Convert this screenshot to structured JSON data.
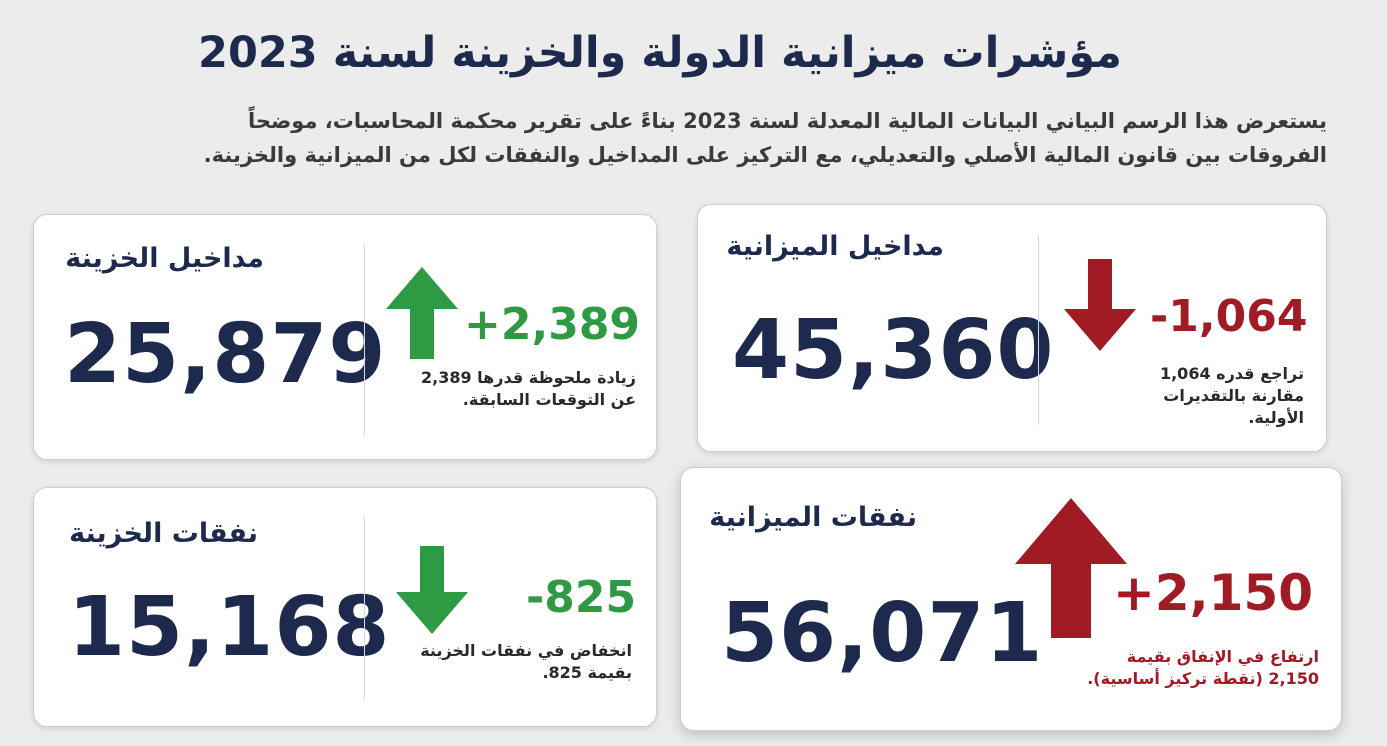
{
  "title": "مؤشرات ميزانية الدولة والخزينة لسنة 2023",
  "subtitle": "يستعرض هذا الرسم البياني البيانات المالية المعدلة لسنة 2023 بناءً على تقرير محكمة المحاسبات، موضحاً الفروقات بين قانون المالية الأصلي والتعديلي، مع التركيز على المداخيل والنفقات لكل من الميزانية والخزينة.",
  "colors": {
    "navy": "#1d2a4d",
    "increase_green": "#2e9a44",
    "decrease_green": "#2e9a44",
    "dark_red": "#a11b25"
  },
  "cards": {
    "budget_revenue": {
      "label": "مداخيل الميزانية",
      "value": "45,360",
      "change": "-1,064",
      "note": "تراجع قدره 1,064 مقارنة بالتقديرات الأولية.",
      "arrow": "arrow-down-icon",
      "color": "#a11b25"
    },
    "treasury_revenue": {
      "label": "مداخيل الخزينة",
      "value": "25,879",
      "change": "+2,389",
      "note": "زيادة ملحوظة قدرها 2,389 عن التوقعات السابقة.",
      "arrow": "arrow-up-icon",
      "color": "#2e9a44"
    },
    "budget_expenses": {
      "label": "نفقات الميزانية",
      "value": "56,071",
      "change": "+2,150",
      "note": "ارتفاع في الإنفاق بقيمة 2,150 (نقطة تركيز أساسية).",
      "arrow": "arrow-up-icon",
      "color": "#a11b25"
    },
    "treasury_expenses": {
      "label": "نفقات الخزينة",
      "value": "15,168",
      "change": "-825",
      "note": "انخفاض في نفقات الخزينة بقيمة 825.",
      "arrow": "arrow-down-icon",
      "color": "#2e9a44"
    }
  }
}
